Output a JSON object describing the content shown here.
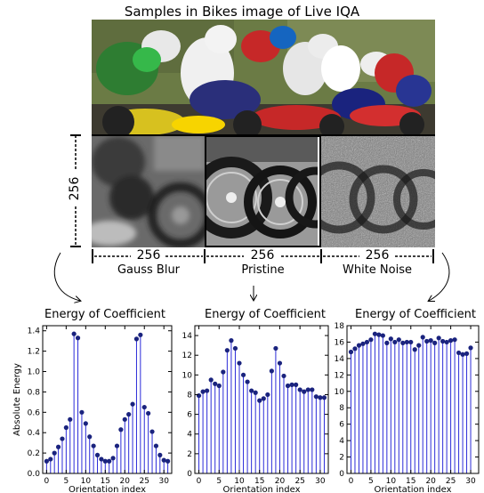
{
  "title": "Samples in Bikes image of Live IQA",
  "dim_label_vertical": "256",
  "patches": [
    {
      "name": "Gauss Blur",
      "size_label": "256"
    },
    {
      "name": "Pristine",
      "size_label": "256"
    },
    {
      "name": "White Noise",
      "size_label": "256"
    }
  ],
  "chart_data": [
    {
      "type": "stem",
      "title": "Energy of Coefficient",
      "xlabel": "Orientation index",
      "ylabel": "Absolute Energy",
      "xlim": [
        -1,
        32
      ],
      "ylim": [
        0,
        1.45
      ],
      "xticks": [
        0,
        5,
        10,
        15,
        20,
        25,
        30
      ],
      "yticks": [
        0,
        0.2,
        0.4,
        0.6,
        0.8,
        1.0,
        1.2,
        1.4
      ],
      "x": [
        0,
        1,
        2,
        3,
        4,
        5,
        6,
        7,
        8,
        9,
        10,
        11,
        12,
        13,
        14,
        15,
        16,
        17,
        18,
        19,
        20,
        21,
        22,
        23,
        24,
        25,
        26,
        27,
        28,
        29,
        30,
        31
      ],
      "values": [
        0.12,
        0.14,
        0.2,
        0.26,
        0.34,
        0.45,
        0.53,
        1.37,
        1.33,
        0.6,
        0.49,
        0.36,
        0.27,
        0.18,
        0.14,
        0.12,
        0.12,
        0.15,
        0.27,
        0.43,
        0.53,
        0.58,
        0.68,
        1.32,
        1.36,
        0.65,
        0.59,
        0.41,
        0.27,
        0.18,
        0.13,
        0.12
      ]
    },
    {
      "type": "stem",
      "title": "Energy of Coefficient",
      "xlabel": "Orientation index",
      "ylabel": "",
      "xlim": [
        -1,
        32
      ],
      "ylim": [
        0,
        15
      ],
      "xticks": [
        0,
        5,
        10,
        15,
        20,
        25,
        30
      ],
      "yticks": [
        0,
        2,
        4,
        6,
        8,
        10,
        12,
        14
      ],
      "x": [
        0,
        1,
        2,
        3,
        4,
        5,
        6,
        7,
        8,
        9,
        10,
        11,
        12,
        13,
        14,
        15,
        16,
        17,
        18,
        19,
        20,
        21,
        22,
        23,
        24,
        25,
        26,
        27,
        28,
        29,
        30,
        31
      ],
      "values": [
        7.9,
        8.3,
        8.4,
        9.5,
        9.1,
        8.9,
        10.3,
        12.5,
        13.5,
        12.7,
        11.2,
        10.0,
        9.3,
        8.4,
        8.2,
        7.4,
        7.6,
        8.0,
        10.4,
        12.7,
        11.2,
        9.9,
        8.9,
        9.0,
        9.0,
        8.5,
        8.3,
        8.5,
        8.5,
        7.8,
        7.7,
        7.7
      ]
    },
    {
      "type": "stem",
      "title": "Energy of Coefficient",
      "xlabel": "Orientation index",
      "ylabel": "",
      "xlim": [
        -1,
        32
      ],
      "ylim": [
        0,
        18
      ],
      "xticks": [
        0,
        5,
        10,
        15,
        20,
        25,
        30
      ],
      "yticks": [
        0,
        2,
        4,
        6,
        8,
        10,
        12,
        14,
        16,
        18
      ],
      "x": [
        0,
        1,
        2,
        3,
        4,
        5,
        6,
        7,
        8,
        9,
        10,
        11,
        12,
        13,
        14,
        15,
        16,
        17,
        18,
        19,
        20,
        21,
        22,
        23,
        24,
        25,
        26,
        27,
        28,
        29,
        30,
        31
      ],
      "values": [
        14.8,
        15.2,
        15.6,
        15.8,
        16.0,
        16.3,
        17.0,
        16.9,
        16.8,
        15.9,
        16.4,
        16.0,
        16.3,
        15.9,
        16.0,
        16.0,
        15.1,
        15.6,
        16.6,
        16.1,
        16.2,
        15.9,
        16.5,
        16.1,
        16.0,
        16.2,
        16.3,
        14.7,
        14.5,
        14.6,
        15.3,
        null
      ]
    }
  ]
}
